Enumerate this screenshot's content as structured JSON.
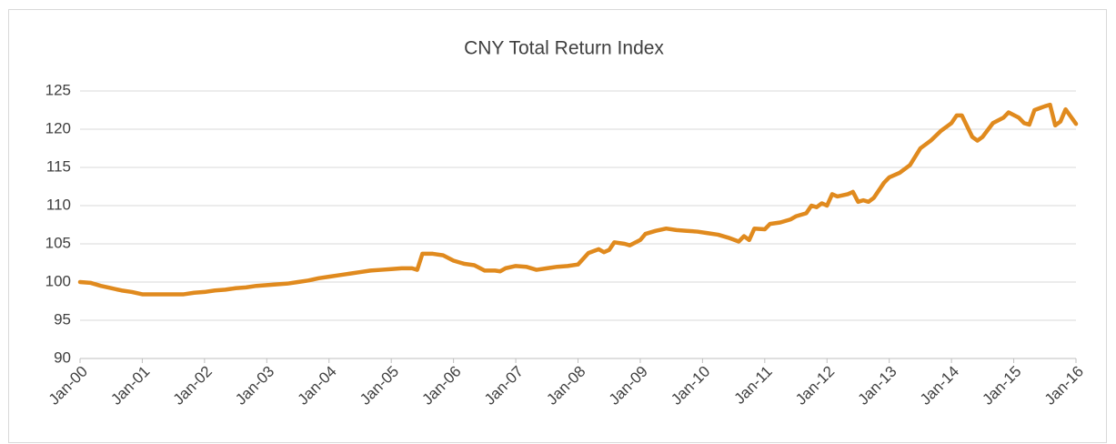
{
  "chart_data": {
    "type": "line",
    "title": "CNY Total Return Index",
    "x": [
      "2000-01",
      "2000-03",
      "2000-05",
      "2000-07",
      "2000-09",
      "2000-11",
      "2001-01",
      "2001-03",
      "2001-05",
      "2001-07",
      "2001-09",
      "2001-11",
      "2002-01",
      "2002-03",
      "2002-05",
      "2002-07",
      "2002-09",
      "2002-11",
      "2003-01",
      "2003-03",
      "2003-05",
      "2003-07",
      "2003-09",
      "2003-11",
      "2004-01",
      "2004-03",
      "2004-05",
      "2004-07",
      "2004-09",
      "2004-11",
      "2005-01",
      "2005-03",
      "2005-05",
      "2005-06",
      "2005-07",
      "2005-09",
      "2005-11",
      "2006-01",
      "2006-03",
      "2006-05",
      "2006-07",
      "2006-09",
      "2006-10",
      "2006-11",
      "2007-01",
      "2007-03",
      "2007-05",
      "2007-07",
      "2007-09",
      "2007-11",
      "2008-01",
      "2008-03",
      "2008-05",
      "2008-06",
      "2008-07",
      "2008-08",
      "2008-10",
      "2008-11",
      "2009-01",
      "2009-02",
      "2009-04",
      "2009-06",
      "2009-08",
      "2009-10",
      "2009-12",
      "2010-02",
      "2010-04",
      "2010-06",
      "2010-08",
      "2010-09",
      "2010-10",
      "2010-11",
      "2011-01",
      "2011-02",
      "2011-04",
      "2011-06",
      "2011-07",
      "2011-09",
      "2011-10",
      "2011-11",
      "2011-12",
      "2012-01",
      "2012-02",
      "2012-03",
      "2012-05",
      "2012-06",
      "2012-07",
      "2012-08",
      "2012-09",
      "2012-10",
      "2012-12",
      "2013-01",
      "2013-03",
      "2013-05",
      "2013-07",
      "2013-09",
      "2013-11",
      "2014-01",
      "2014-02",
      "2014-03",
      "2014-05",
      "2014-06",
      "2014-07",
      "2014-09",
      "2014-11",
      "2014-12",
      "2015-02",
      "2015-03",
      "2015-04",
      "2015-05",
      "2015-07",
      "2015-08",
      "2015-09",
      "2015-10",
      "2015-11",
      "2016-01"
    ],
    "series": [
      {
        "name": "CNY Total Return Index",
        "color": "#e08a1e",
        "values": [
          100,
          99.9,
          99.5,
          99.2,
          98.9,
          98.7,
          98.4,
          98.4,
          98.4,
          98.4,
          98.4,
          98.6,
          98.7,
          98.9,
          99.0,
          99.2,
          99.3,
          99.5,
          99.6,
          99.7,
          99.8,
          100.0,
          100.2,
          100.5,
          100.7,
          100.9,
          101.1,
          101.3,
          101.5,
          101.6,
          101.7,
          101.8,
          101.8,
          101.6,
          103.7,
          103.7,
          103.5,
          102.8,
          102.4,
          102.2,
          101.5,
          101.5,
          101.4,
          101.8,
          102.1,
          102.0,
          101.6,
          101.8,
          102.0,
          102.1,
          102.3,
          103.8,
          104.3,
          103.9,
          104.2,
          105.2,
          105.0,
          104.8,
          105.5,
          106.3,
          106.7,
          107.0,
          106.8,
          106.7,
          106.6,
          106.4,
          106.2,
          105.8,
          105.3,
          106.0,
          105.5,
          107.0,
          106.9,
          107.6,
          107.8,
          108.2,
          108.6,
          109.0,
          110.0,
          109.8,
          110.3,
          110.0,
          111.5,
          111.2,
          111.5,
          111.8,
          110.5,
          110.7,
          110.5,
          111.0,
          113.0,
          113.7,
          114.3,
          115.3,
          117.5,
          118.5,
          119.8,
          120.8,
          121.8,
          121.8,
          119.0,
          118.5,
          119.0,
          120.8,
          121.5,
          122.2,
          121.5,
          120.8,
          120.6,
          122.5,
          123.0,
          123.2,
          120.5,
          121.0,
          122.6,
          120.7
        ]
      }
    ],
    "xlim": [
      "2000-01",
      "2016-01"
    ],
    "xticks": [
      {
        "value": "2000-01",
        "label": "Jan-00"
      },
      {
        "value": "2001-01",
        "label": "Jan-01"
      },
      {
        "value": "2002-01",
        "label": "Jan-02"
      },
      {
        "value": "2003-01",
        "label": "Jan-03"
      },
      {
        "value": "2004-01",
        "label": "Jan-04"
      },
      {
        "value": "2005-01",
        "label": "Jan-05"
      },
      {
        "value": "2006-01",
        "label": "Jan-06"
      },
      {
        "value": "2007-01",
        "label": "Jan-07"
      },
      {
        "value": "2008-01",
        "label": "Jan-08"
      },
      {
        "value": "2009-01",
        "label": "Jan-09"
      },
      {
        "value": "2010-01",
        "label": "Jan-10"
      },
      {
        "value": "2011-01",
        "label": "Jan-11"
      },
      {
        "value": "2012-01",
        "label": "Jan-12"
      },
      {
        "value": "2013-01",
        "label": "Jan-13"
      },
      {
        "value": "2014-01",
        "label": "Jan-14"
      },
      {
        "value": "2015-01",
        "label": "Jan-15"
      },
      {
        "value": "2016-01",
        "label": "Jan-16"
      }
    ],
    "ylim": [
      90,
      125
    ],
    "yticks": [
      90,
      95,
      100,
      105,
      110,
      115,
      120,
      125
    ],
    "grid": true
  }
}
